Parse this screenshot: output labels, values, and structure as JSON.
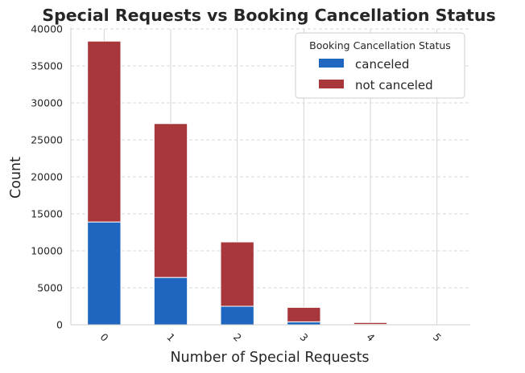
{
  "chart_data": {
    "type": "bar",
    "stacked": true,
    "title": "Special Requests vs Booking Cancellation Status",
    "xlabel": "Number of Special Requests",
    "ylabel": "Count",
    "categories": [
      "0",
      "1",
      "2",
      "3",
      "4",
      "5"
    ],
    "series": [
      {
        "name": "canceled",
        "color": "#1f66c0",
        "values": [
          13900,
          6400,
          2500,
          400,
          50,
          10
        ]
      },
      {
        "name": "not canceled",
        "color": "#a8373c",
        "values": [
          24450,
          20800,
          8700,
          1950,
          250,
          30
        ]
      }
    ],
    "ylim": [
      0,
      40000
    ],
    "yticks": [
      0,
      5000,
      10000,
      15000,
      20000,
      25000,
      30000,
      35000,
      40000
    ],
    "ytick_labels": [
      "0",
      "5000",
      "10000",
      "15000",
      "20000",
      "25000",
      "30000",
      "35000",
      "40000"
    ],
    "grid": {
      "x": "solid-light",
      "y": "dashed"
    },
    "legend": {
      "title": "Booking Cancellation Status",
      "placement": "top-right"
    }
  }
}
